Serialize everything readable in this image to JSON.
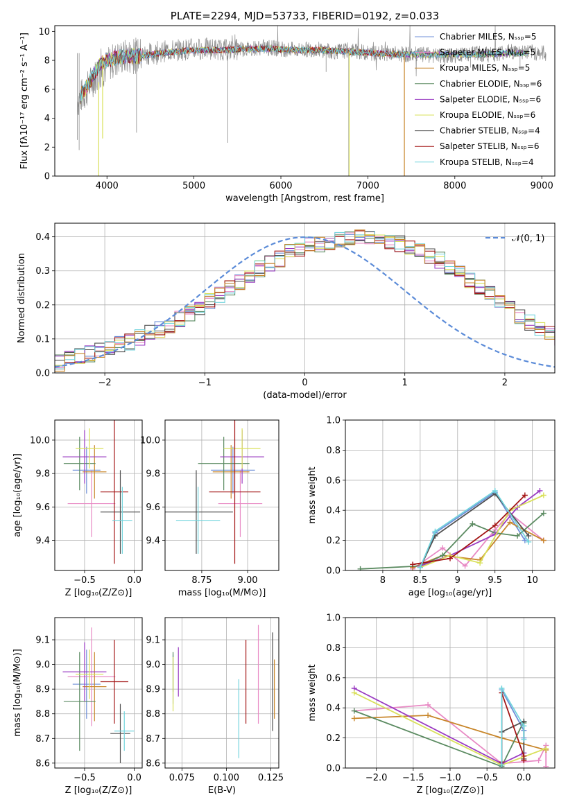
{
  "palette": [
    "#6f8fd8",
    "#e889c4",
    "#c8862a",
    "#5a8a60",
    "#9a3bc2",
    "#d9e05a",
    "#505050",
    "#a31515",
    "#72d4dd"
  ],
  "chart_data": [
    {
      "id": "spectrum",
      "type": "line",
      "title": "PLATE=2294, MJD=53733, FIBERID=0192, z=0.033",
      "xlabel": "wavelength [Angstrom, rest frame]",
      "ylabel": "Flux [fλ10⁻¹⁷ erg cm⁻² s⁻¹ A⁻¹]",
      "xlim": [
        3400,
        9150
      ],
      "ylim": [
        0,
        10.4
      ],
      "xticks": [
        4000,
        5000,
        6000,
        7000,
        8000,
        9000
      ],
      "yticks": [
        0,
        2,
        4,
        6,
        8,
        10
      ],
      "grid": false,
      "legend_position": "upper-right",
      "series": [
        {
          "name": "Chabrier MILES, Nₛₛₚ=5"
        },
        {
          "name": "Salpeter MILES, Nₛₛₚ=5"
        },
        {
          "name": "Kroupa MILES, Nₛₛₚ=5"
        },
        {
          "name": "Chabrier ELODIE, Nₛₛₚ=6"
        },
        {
          "name": "Salpeter ELODIE, Nₛₛₚ=6"
        },
        {
          "name": "Kroupa ELODIE, Nₛₛₚ=6"
        },
        {
          "name": "Chabrier STELIB, Nₛₛₚ=4"
        },
        {
          "name": "Salpeter STELIB, Nₛₛₚ=6"
        },
        {
          "name": "Kroupa STELIB, Nₛₛₚ=4"
        }
      ],
      "data_continuum": {
        "x": [
          3660,
          3750,
          3850,
          3950,
          4050,
          4150,
          4300,
          4450,
          4600,
          4800,
          5000,
          5200,
          5400,
          5600,
          5800,
          6000,
          6200,
          6400,
          6600,
          6800,
          7000,
          7200,
          7400,
          7600,
          7800,
          8000,
          8200,
          8400,
          8600,
          8800,
          9000
        ],
        "y": [
          5.2,
          5.8,
          6.8,
          7.3,
          7.9,
          8.2,
          8.3,
          8.4,
          8.6,
          8.7,
          8.8,
          8.8,
          8.7,
          8.8,
          8.9,
          8.8,
          8.7,
          8.8,
          8.6,
          8.7,
          8.5,
          8.5,
          8.4,
          8.4,
          8.3,
          8.3,
          8.5,
          8.4,
          8.6,
          8.6,
          8.5
        ]
      },
      "model_continuum": {
        "x": [
          3690,
          3800,
          3900,
          4000,
          4100,
          4250,
          4400,
          4600,
          4800,
          5000,
          5300,
          5600,
          5900,
          6200,
          6500,
          6800,
          7100,
          7400,
          7700,
          8000,
          8300,
          8600,
          8850
        ],
        "y": [
          5.5,
          6.5,
          7.6,
          8.0,
          8.2,
          8.3,
          8.3,
          8.5,
          8.6,
          8.7,
          8.7,
          8.8,
          8.8,
          8.7,
          8.7,
          8.6,
          8.5,
          8.4,
          8.4,
          8.4,
          8.4,
          8.5,
          8.5
        ]
      }
    },
    {
      "id": "residuals",
      "type": "histogram",
      "xlabel": "(data-model)/error",
      "ylabel": "Normed distribution",
      "xlim": [
        -2.5,
        2.5
      ],
      "ylim": [
        0,
        0.44
      ],
      "xticks": [
        -2,
        -1,
        0,
        1,
        2
      ],
      "yticks": [
        0.0,
        0.1,
        0.2,
        0.3,
        0.4
      ],
      "grid": true,
      "legend_position": "upper-right",
      "reference_label": "𝒩(0, 1)",
      "bin_edges_start": -2.5,
      "bin_width": 0.1,
      "base_values": [
        0.029,
        0.042,
        0.048,
        0.055,
        0.067,
        0.074,
        0.084,
        0.092,
        0.105,
        0.117,
        0.128,
        0.142,
        0.158,
        0.173,
        0.195,
        0.213,
        0.232,
        0.252,
        0.27,
        0.29,
        0.307,
        0.32,
        0.335,
        0.353,
        0.365,
        0.375,
        0.38,
        0.385,
        0.392,
        0.395,
        0.398,
        0.399,
        0.395,
        0.39,
        0.38,
        0.37,
        0.358,
        0.345,
        0.33,
        0.312,
        0.292,
        0.27,
        0.25,
        0.232,
        0.21,
        0.19,
        0.168,
        0.148,
        0.13,
        0.114,
        0.098,
        0.084,
        0.07,
        0.058,
        0.047,
        0.038,
        0.03,
        0.024,
        0.019,
        0.015
      ]
    },
    {
      "id": "age-vs-Z",
      "type": "errorbar",
      "xlabel": "Z [log₁₀(Z/Z⊙)]",
      "ylabel": "age  [log₁₀(age/yr)]",
      "xlim": [
        -0.8,
        0.08
      ],
      "ylim": [
        9.22,
        10.12
      ],
      "xticks": [
        -0.5,
        -0.0
      ],
      "xticklabels": [
        "−0.5",
        "0.0"
      ],
      "yticks": [
        9.4,
        9.6,
        9.8,
        10.0
      ],
      "points": [
        {
          "x": -0.48,
          "y": 9.82,
          "xerr": 0.14,
          "yerr": 0.14
        },
        {
          "x": -0.43,
          "y": 9.62,
          "xerr": 0.24,
          "yerr": 0.2
        },
        {
          "x": -0.4,
          "y": 9.81,
          "xerr": 0.12,
          "yerr": 0.16
        },
        {
          "x": -0.55,
          "y": 9.86,
          "xerr": 0.16,
          "yerr": 0.16
        },
        {
          "x": -0.5,
          "y": 9.9,
          "xerr": 0.22,
          "yerr": 0.16
        },
        {
          "x": -0.45,
          "y": 9.95,
          "xerr": 0.14,
          "yerr": 0.12
        },
        {
          "x": -0.14,
          "y": 9.57,
          "xerr": 0.2,
          "yerr": 0.25
        },
        {
          "x": -0.2,
          "y": 9.69,
          "xerr": 0.14,
          "yerr": 0.43
        },
        {
          "x": -0.12,
          "y": 9.52,
          "xerr": 0.1,
          "yerr": 0.2
        }
      ]
    },
    {
      "id": "age-vs-mass",
      "type": "errorbar",
      "xlabel": "mass [log₁₀(M/M⊙)]",
      "xlim": [
        8.55,
        9.17
      ],
      "ylim": [
        9.22,
        10.12
      ],
      "xticks": [
        8.75,
        9.0
      ],
      "xticklabels": [
        "8.75",
        "9.00"
      ],
      "yticks": [
        9.4,
        9.6,
        9.8,
        10.0
      ],
      "points": [
        {
          "x": 8.92,
          "y": 9.82,
          "xerr": 0.12,
          "yerr": 0.14
        },
        {
          "x": 8.96,
          "y": 9.62,
          "xerr": 0.12,
          "yerr": 0.2
        },
        {
          "x": 8.91,
          "y": 9.81,
          "xerr": 0.1,
          "yerr": 0.16
        },
        {
          "x": 8.87,
          "y": 9.86,
          "xerr": 0.14,
          "yerr": 0.16
        },
        {
          "x": 8.97,
          "y": 9.9,
          "xerr": 0.12,
          "yerr": 0.16
        },
        {
          "x": 8.97,
          "y": 9.95,
          "xerr": 0.1,
          "yerr": 0.12
        },
        {
          "x": 8.72,
          "y": 9.57,
          "xerr": 0.2,
          "yerr": 0.25
        },
        {
          "x": 8.93,
          "y": 9.69,
          "xerr": 0.14,
          "yerr": 0.43
        },
        {
          "x": 8.73,
          "y": 9.52,
          "xerr": 0.12,
          "yerr": 0.2
        }
      ]
    },
    {
      "id": "weight-vs-age",
      "type": "line",
      "xlabel": "age  [log₁₀(age/yr)]",
      "ylabel": "mass weight",
      "xlim": [
        7.5,
        10.3
      ],
      "ylim": [
        0,
        1.0
      ],
      "xticks": [
        8.0,
        8.5,
        9.0,
        9.5,
        10.0
      ],
      "yticks": [
        0.0,
        0.2,
        0.4,
        0.6,
        0.8,
        1.0
      ],
      "grid": true,
      "series": [
        {
          "x": [
            8.5,
            8.7,
            9.5,
            9.9
          ],
          "y": [
            0.02,
            0.25,
            0.52,
            0.2
          ]
        },
        {
          "x": [
            8.4,
            8.8,
            9.1,
            9.5,
            9.7,
            10.15
          ],
          "y": [
            0.01,
            0.15,
            0.03,
            0.27,
            0.38,
            0.2
          ]
        },
        {
          "x": [
            8.4,
            8.8,
            9.3,
            9.7,
            10.15
          ],
          "y": [
            0.02,
            0.1,
            0.07,
            0.32,
            0.2
          ]
        },
        {
          "x": [
            7.7,
            8.5,
            8.8,
            9.2,
            9.5,
            9.8,
            10.15
          ],
          "y": [
            0.01,
            0.03,
            0.1,
            0.31,
            0.25,
            0.23,
            0.38
          ]
        },
        {
          "x": [
            8.5,
            8.9,
            9.5,
            9.8,
            10.1
          ],
          "y": [
            0.03,
            0.1,
            0.24,
            0.42,
            0.53
          ]
        },
        {
          "x": [
            8.5,
            8.9,
            9.3,
            9.7,
            10.15
          ],
          "y": [
            0.02,
            0.1,
            0.05,
            0.4,
            0.5
          ]
        },
        {
          "x": [
            8.5,
            8.7,
            9.5,
            9.95
          ],
          "y": [
            0.02,
            0.23,
            0.51,
            0.23
          ]
        },
        {
          "x": [
            8.4,
            8.9,
            9.5,
            9.9
          ],
          "y": [
            0.04,
            0.08,
            0.3,
            0.5
          ]
        },
        {
          "x": [
            8.5,
            8.7,
            9.5,
            9.95
          ],
          "y": [
            0.02,
            0.26,
            0.53,
            0.19
          ]
        }
      ]
    },
    {
      "id": "mass-vs-Z",
      "type": "errorbar",
      "xlabel": "Z [log₁₀(Z/Z⊙)]",
      "ylabel": "mass [log₁₀(M/M⊙)]",
      "xlim": [
        -0.8,
        0.08
      ],
      "ylim": [
        8.58,
        9.19
      ],
      "xticks": [
        -0.5,
        -0.0
      ],
      "xticklabels": [
        "−0.5",
        "0.0"
      ],
      "yticks": [
        8.6,
        8.7,
        8.8,
        8.9,
        9.0,
        9.1
      ],
      "points": [
        {
          "x": -0.48,
          "y": 8.92,
          "xerr": 0.14,
          "yerr": 0.14
        },
        {
          "x": -0.43,
          "y": 8.95,
          "xerr": 0.24,
          "yerr": 0.2
        },
        {
          "x": -0.4,
          "y": 8.91,
          "xerr": 0.12,
          "yerr": 0.14
        },
        {
          "x": -0.55,
          "y": 8.85,
          "xerr": 0.16,
          "yerr": 0.2
        },
        {
          "x": -0.5,
          "y": 8.97,
          "xerr": 0.22,
          "yerr": 0.12
        },
        {
          "x": -0.45,
          "y": 8.96,
          "xerr": 0.14,
          "yerr": 0.1
        },
        {
          "x": -0.14,
          "y": 8.72,
          "xerr": 0.1,
          "yerr": 0.12
        },
        {
          "x": -0.2,
          "y": 8.93,
          "xerr": 0.14,
          "yerr": 0.17
        },
        {
          "x": -0.1,
          "y": 8.73,
          "xerr": 0.1,
          "yerr": 0.08
        }
      ]
    },
    {
      "id": "mass-vs-EBV",
      "type": "errorbar",
      "xlabel": "E(B-V)",
      "xlim": [
        0.0655,
        0.1295
      ],
      "ylim": [
        8.58,
        9.19
      ],
      "xticks": [
        0.075,
        0.1,
        0.125
      ],
      "xticklabels": [
        "0.075",
        "0.100",
        "0.125"
      ],
      "yticks": [
        8.6,
        8.7,
        8.8,
        8.9,
        9.0,
        9.1
      ],
      "points": [
        {
          "x": 0.07,
          "y": 8.94,
          "yerr": 0.1
        },
        {
          "x": 0.118,
          "y": 8.96,
          "yerr": 0.2
        },
        {
          "x": 0.127,
          "y": 8.9,
          "yerr": 0.12
        },
        {
          "x": 0.07,
          "y": 8.97,
          "yerr": 0.08
        },
        {
          "x": 0.073,
          "y": 8.97,
          "yerr": 0.1
        },
        {
          "x": 0.07,
          "y": 8.92,
          "yerr": 0.11
        },
        {
          "x": 0.126,
          "y": 8.93,
          "yerr": 0.2
        },
        {
          "x": 0.111,
          "y": 8.93,
          "yerr": 0.17
        },
        {
          "x": 0.107,
          "y": 8.78,
          "yerr": 0.16
        }
      ]
    },
    {
      "id": "weight-vs-Z",
      "type": "line",
      "xlabel": "Z [log₁₀(Z/Z⊙)]",
      "ylabel": "mass weight",
      "xlim": [
        -2.42,
        0.42
      ],
      "ylim": [
        0,
        1.0
      ],
      "xticks": [
        -2.0,
        -1.5,
        -1.0,
        -0.5,
        0.0
      ],
      "xticklabels": [
        "−2.0",
        "−1.5",
        "−1.0",
        "−0.5",
        "0.0"
      ],
      "yticks": [
        0.0,
        0.2,
        0.4,
        0.6,
        0.8,
        1.0
      ],
      "grid": true,
      "series": [
        {
          "x": [
            -0.3,
            -0.3,
            0.0,
            0.0
          ],
          "y": [
            0.02,
            0.52,
            0.25,
            0.2
          ]
        },
        {
          "x": [
            -2.3,
            -1.3,
            -0.3,
            0.2,
            0.3,
            0.3
          ],
          "y": [
            0.38,
            0.42,
            0.03,
            0.05,
            0.15,
            0.01
          ]
        },
        {
          "x": [
            -2.3,
            -1.3,
            -0.3,
            0.3
          ],
          "y": [
            0.33,
            0.35,
            0.2,
            0.12
          ]
        },
        {
          "x": [
            -2.3,
            -0.3,
            0.0,
            0.0
          ],
          "y": [
            0.38,
            0.01,
            0.31,
            0.3
          ]
        },
        {
          "x": [
            -2.3,
            -0.3,
            0.0
          ],
          "y": [
            0.53,
            0.03,
            0.1
          ]
        },
        {
          "x": [
            -2.3,
            -0.3,
            0.3
          ],
          "y": [
            0.5,
            0.02,
            0.13
          ]
        },
        {
          "x": [
            -0.3,
            -0.3,
            0.0,
            0.0
          ],
          "y": [
            0.02,
            0.24,
            0.31,
            0.06
          ]
        },
        {
          "x": [
            -0.3,
            -0.3,
            0.0,
            0.0
          ],
          "y": [
            0.04,
            0.5,
            0.08,
            0.05
          ]
        },
        {
          "x": [
            -0.3,
            -0.3,
            0.0,
            0.0
          ],
          "y": [
            0.02,
            0.53,
            0.28,
            0.19
          ]
        }
      ]
    }
  ]
}
